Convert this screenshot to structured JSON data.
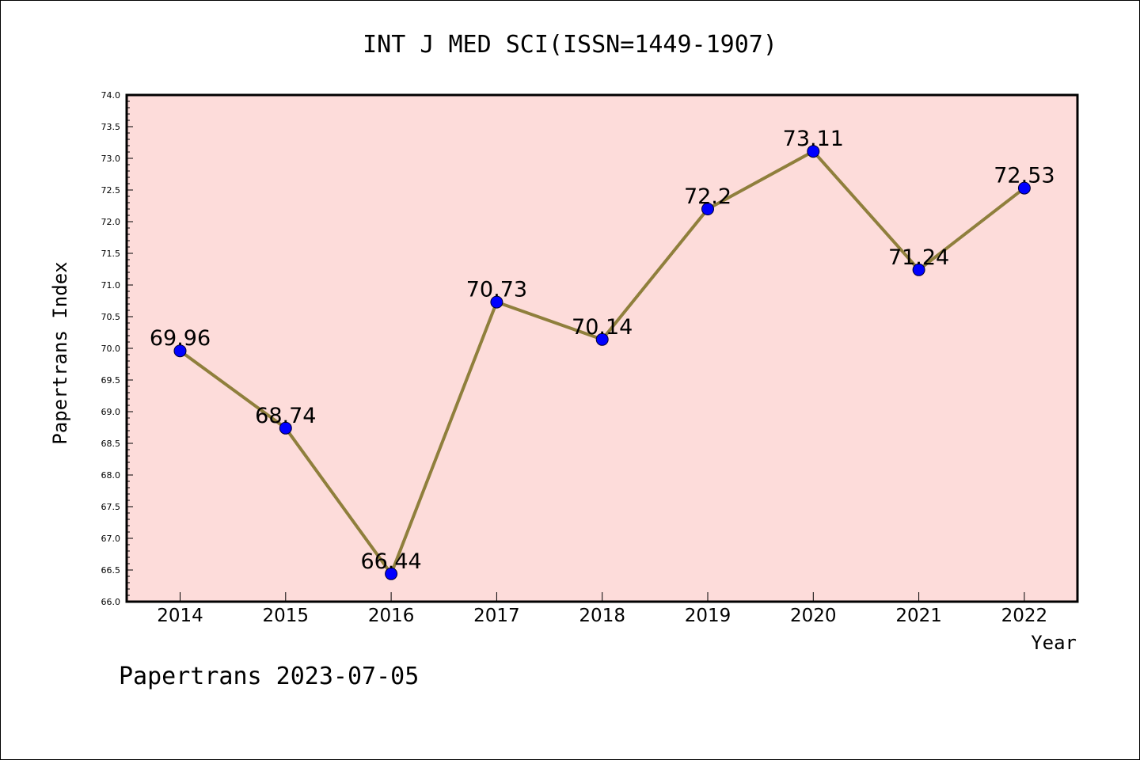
{
  "chart_data": {
    "type": "line",
    "title": "INT J MED SCI(ISSN=1449-1907)",
    "xlabel": "Year",
    "ylabel": "Papertrans Index",
    "categories": [
      "2014",
      "2015",
      "2016",
      "2017",
      "2018",
      "2019",
      "2020",
      "2021",
      "2022"
    ],
    "values": [
      69.96,
      68.74,
      66.44,
      70.73,
      70.14,
      72.2,
      73.11,
      71.24,
      72.53
    ],
    "data_labels": [
      "69.96",
      "68.74",
      "66.44",
      "70.73",
      "70.14",
      "72.2",
      "73.11",
      "71.24",
      "72.53"
    ],
    "ylim": [
      66.0,
      74.0
    ],
    "yticks": [
      "66.0",
      "66.5",
      "67.0",
      "67.5",
      "68.0",
      "68.5",
      "69.0",
      "69.5",
      "70.0",
      "70.5",
      "71.0",
      "71.5",
      "72.0",
      "72.5",
      "73.0",
      "73.5",
      "74.0"
    ],
    "grid": false,
    "colors": {
      "plot_background": "#fddcda",
      "line": "#8f7f3c",
      "marker": "#0000ff"
    }
  },
  "footer": "Papertrans 2023-07-05"
}
